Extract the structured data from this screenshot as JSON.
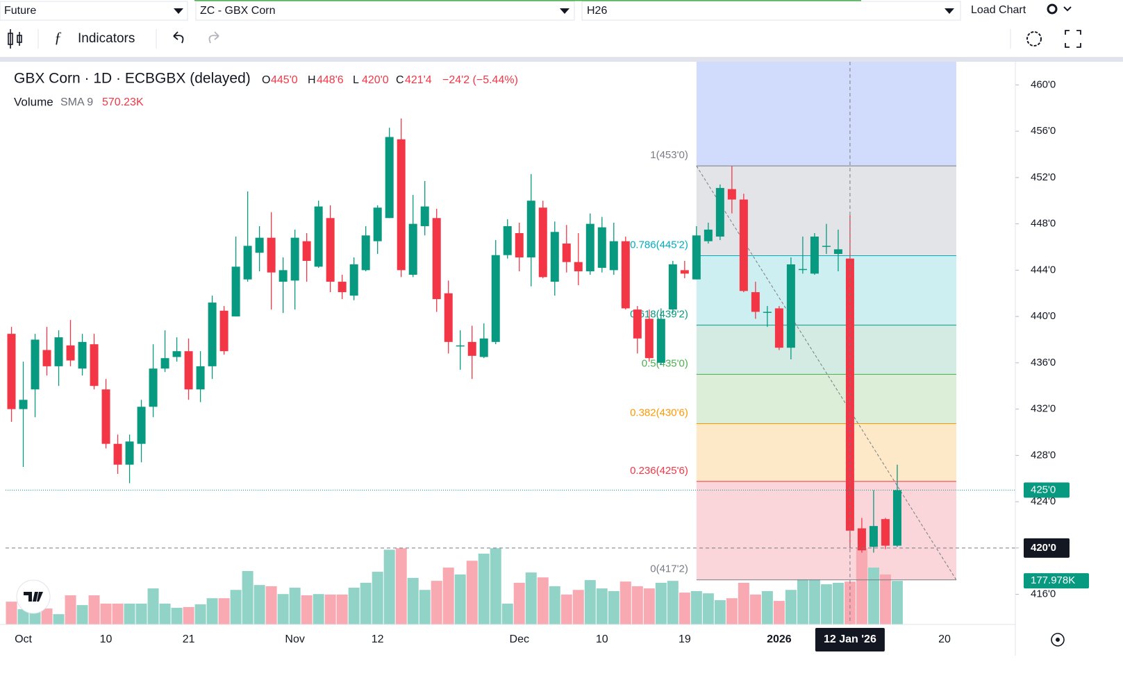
{
  "toolbar": {
    "symbol_type": "Future",
    "symbol": "ZC - GBX Corn",
    "contract": "H26",
    "indicators": "Indicators",
    "load_chart": "Load Chart"
  },
  "legend": {
    "title": "GBX Corn · 1D · ECBGBX (delayed)",
    "ohlc": [
      {
        "key": "O",
        "value": "445'0"
      },
      {
        "key": "H",
        "value": "448'6"
      },
      {
        "key": "L",
        "value": "420'0"
      },
      {
        "key": "C",
        "value": "421'4"
      }
    ],
    "change": "−24'2 (−5.44%)",
    "volume": {
      "name": "Volume",
      "study": "SMA 9",
      "value": "570.23K"
    }
  },
  "chart_data": {
    "type": "candlestick",
    "up_color": "#089981",
    "down_color": "#f23645",
    "volume_up_color": "#92d3c8",
    "volume_down_color": "#f8a9b1",
    "xlim": [
      -0.5,
      85
    ],
    "ylim": [
      413.4,
      462
    ],
    "xticks": [
      {
        "value": 1,
        "label": "Oct"
      },
      {
        "value": 8,
        "label": "10"
      },
      {
        "value": 15,
        "label": "21"
      },
      {
        "value": 24,
        "label": "Nov"
      },
      {
        "value": 31,
        "label": "12"
      },
      {
        "value": 43,
        "label": "Dec"
      },
      {
        "value": 50,
        "label": "10"
      },
      {
        "value": 57,
        "label": "19"
      },
      {
        "value": 65,
        "label": "2026"
      },
      {
        "value": 79,
        "label": "20"
      }
    ],
    "yticks": [
      {
        "value": 460,
        "label": "460'0"
      },
      {
        "value": 456,
        "label": "456'0"
      },
      {
        "value": 452,
        "label": "452'0"
      },
      {
        "value": 448,
        "label": "448'0"
      },
      {
        "value": 444,
        "label": "444'0"
      },
      {
        "value": 440,
        "label": "440'0"
      },
      {
        "value": 436,
        "label": "436'0"
      },
      {
        "value": 432,
        "label": "432'0"
      },
      {
        "value": 428,
        "label": "428'0"
      },
      {
        "value": 424,
        "label": "424'0"
      },
      {
        "value": 420,
        "label": "420'0"
      },
      {
        "value": 416,
        "label": "416'0"
      }
    ],
    "open": [
      438.5,
      432.0,
      433.7,
      437.1,
      435.7,
      437.5,
      435.5,
      437.6,
      433.7,
      429.0,
      427.2,
      429.0,
      432.2,
      435.5,
      436.5,
      437.0,
      433.7,
      435.7,
      440.5,
      440.0,
      443.2,
      445.5,
      446.8,
      443.0,
      443.1,
      446.5,
      444.3,
      448.5,
      443.0,
      441.8,
      444.0,
      446.5,
      448.5,
      455.3,
      443.6,
      447.8,
      448.5,
      442.0,
      437.5,
      437.8,
      436.5,
      437.8,
      445.3,
      447.2,
      445.1,
      449.4,
      443.0,
      446.3,
      444.7,
      443.9,
      444.2,
      444.0,
      446.5,
      440.6,
      439.8,
      436.0,
      440.6,
      444.0,
      443.2,
      446.5,
      446.9,
      451.0,
      450.1,
      442.1,
      440.4,
      440.7,
      437.3,
      444.1,
      443.7,
      446.1,
      445.4,
      445.0,
      421.7,
      420.1,
      422.5,
      420.2
    ],
    "high": [
      439.1,
      436.1,
      438.5,
      439.1,
      438.8,
      439.7,
      438.5,
      438.5,
      434.6,
      429.8,
      429.8,
      432.8,
      437.6,
      438.8,
      438.2,
      438.1,
      437.0,
      441.8,
      440.9,
      446.9,
      450.8,
      447.8,
      449.0,
      445.1,
      447.5,
      447.2,
      450.0,
      449.6,
      443.6,
      445.1,
      447.8,
      449.6,
      456.3,
      457.1,
      450.5,
      451.7,
      449.3,
      443.1,
      438.8,
      439.2,
      439.4,
      446.6,
      448.4,
      448.1,
      452.3,
      450.0,
      448.2,
      447.9,
      447.2,
      448.9,
      448.6,
      448.1,
      446.9,
      440.9,
      440.6,
      440.7,
      444.8,
      444.8,
      447.8,
      448.1,
      451.4,
      453.0,
      450.6,
      443.0,
      440.9,
      440.9,
      445.1,
      446.9,
      447.2,
      448.0,
      447.5,
      448.75,
      422.6,
      425.0,
      422.6,
      427.2
    ],
    "low": [
      430.9,
      427.0,
      431.3,
      434.9,
      434.0,
      435.7,
      434.9,
      433.7,
      428.6,
      426.4,
      425.6,
      427.4,
      431.3,
      435.2,
      436.1,
      432.8,
      432.6,
      434.6,
      436.7,
      440.0,
      443.0,
      443.9,
      440.6,
      440.3,
      440.6,
      443.0,
      444.2,
      442.1,
      441.5,
      441.4,
      443.9,
      445.4,
      448.5,
      443.4,
      443.4,
      447.0,
      440.4,
      436.8,
      435.4,
      434.6,
      436.4,
      437.6,
      445.0,
      443.9,
      442.6,
      443.3,
      441.8,
      443.8,
      442.7,
      443.6,
      443.8,
      443.6,
      440.6,
      436.8,
      436.1,
      435.8,
      440.3,
      443.3,
      443.2,
      446.3,
      446.6,
      448.9,
      442.1,
      439.8,
      439.1,
      437.1,
      436.3,
      443.7,
      443.6,
      445.4,
      443.9,
      420.0,
      419.6,
      419.6,
      419.9,
      420.1
    ],
    "close": [
      432.0,
      432.8,
      438.0,
      435.7,
      438.2,
      436.2,
      437.8,
      434.0,
      429.0,
      427.2,
      429.2,
      432.2,
      435.5,
      436.4,
      437.0,
      433.7,
      435.7,
      441.2,
      437.0,
      444.3,
      446.1,
      446.8,
      443.8,
      444.0,
      446.8,
      444.8,
      449.5,
      443.0,
      442.1,
      444.5,
      447.0,
      449.4,
      455.5,
      444.0,
      448.0,
      449.5,
      441.5,
      437.8,
      437.5,
      436.6,
      438.1,
      445.3,
      447.8,
      445.1,
      450.0,
      443.4,
      447.3,
      444.7,
      443.9,
      448.0,
      447.7,
      446.5,
      440.7,
      438.1,
      436.4,
      439.8,
      444.5,
      443.7,
      447.0,
      447.5,
      451.1,
      450.1,
      442.2,
      440.4,
      440.4,
      437.3,
      444.5,
      444.1,
      446.9,
      446.1,
      445.8,
      421.5,
      419.8,
      421.9,
      420.2,
      425.0
    ],
    "volume": {
      "ylim": [
        0,
        320
      ],
      "values": [
        93,
        62,
        85,
        65,
        42,
        119,
        79,
        119,
        85,
        85,
        85,
        85,
        147,
        85,
        68,
        71,
        82,
        107,
        107,
        141,
        218,
        161,
        156,
        124,
        150,
        119,
        124,
        122,
        122,
        150,
        170,
        215,
        305,
        311,
        190,
        141,
        178,
        232,
        204,
        260,
        289,
        311,
        85,
        170,
        212,
        192,
        156,
        122,
        141,
        181,
        147,
        136,
        175,
        156,
        147,
        170,
        178,
        130,
        136,
        127,
        99,
        107,
        170,
        122,
        136,
        96,
        141,
        184,
        184,
        164,
        170,
        175,
        311,
        232,
        204,
        177.978
      ],
      "value_labels": [
        null,
        null,
        null,
        null,
        null,
        null,
        null,
        null,
        null,
        null,
        null,
        null,
        null,
        null,
        null,
        null,
        null,
        null,
        null,
        null,
        null,
        null,
        null,
        null,
        null,
        null,
        null,
        null,
        null,
        null,
        null,
        null,
        null,
        null,
        null,
        null,
        null,
        null,
        null,
        null,
        null,
        null,
        null,
        null,
        null,
        null,
        null,
        null,
        null,
        null,
        null,
        null,
        null,
        null,
        null,
        null,
        null,
        null,
        null,
        null,
        null,
        null,
        null,
        null,
        null,
        null,
        null,
        null,
        null,
        null,
        null,
        null,
        null,
        null,
        null,
        "177.978K"
      ]
    },
    "last_price": {
      "value": 425,
      "label": "425'0",
      "color": "#089981"
    },
    "crosshair": {
      "index": 71,
      "x_label": "12 Jan '26",
      "price": {
        "value": 420,
        "label": "420'0"
      }
    },
    "fib": {
      "x_range": [
        58,
        80
      ],
      "extension_color": "#d1dcfd",
      "levels": [
        {
          "label": "1(453'0)",
          "price": 453,
          "color": "#787b86",
          "fill": "#e3e4e7"
        },
        {
          "label": "0.786(445'2)",
          "price": 445.25,
          "color": "#00acc1",
          "fill": "#cdeff2"
        },
        {
          "label": "0.618(439'2)",
          "price": 439.25,
          "color": "#089981",
          "fill": "#d4ebe4"
        },
        {
          "label": "0.5(435'0)",
          "price": 435,
          "color": "#4caf50",
          "fill": "#dcedd8"
        },
        {
          "label": "0.382(430'6)",
          "price": 430.75,
          "color": "#ff9800",
          "fill": "#fde8c8"
        },
        {
          "label": "0.236(425'6)",
          "price": 425.75,
          "color": "#f23645",
          "fill": "#fad5d9"
        },
        {
          "label": "0(417'2)",
          "price": 417.25,
          "color": "#787b86",
          "fill": null
        }
      ]
    }
  }
}
